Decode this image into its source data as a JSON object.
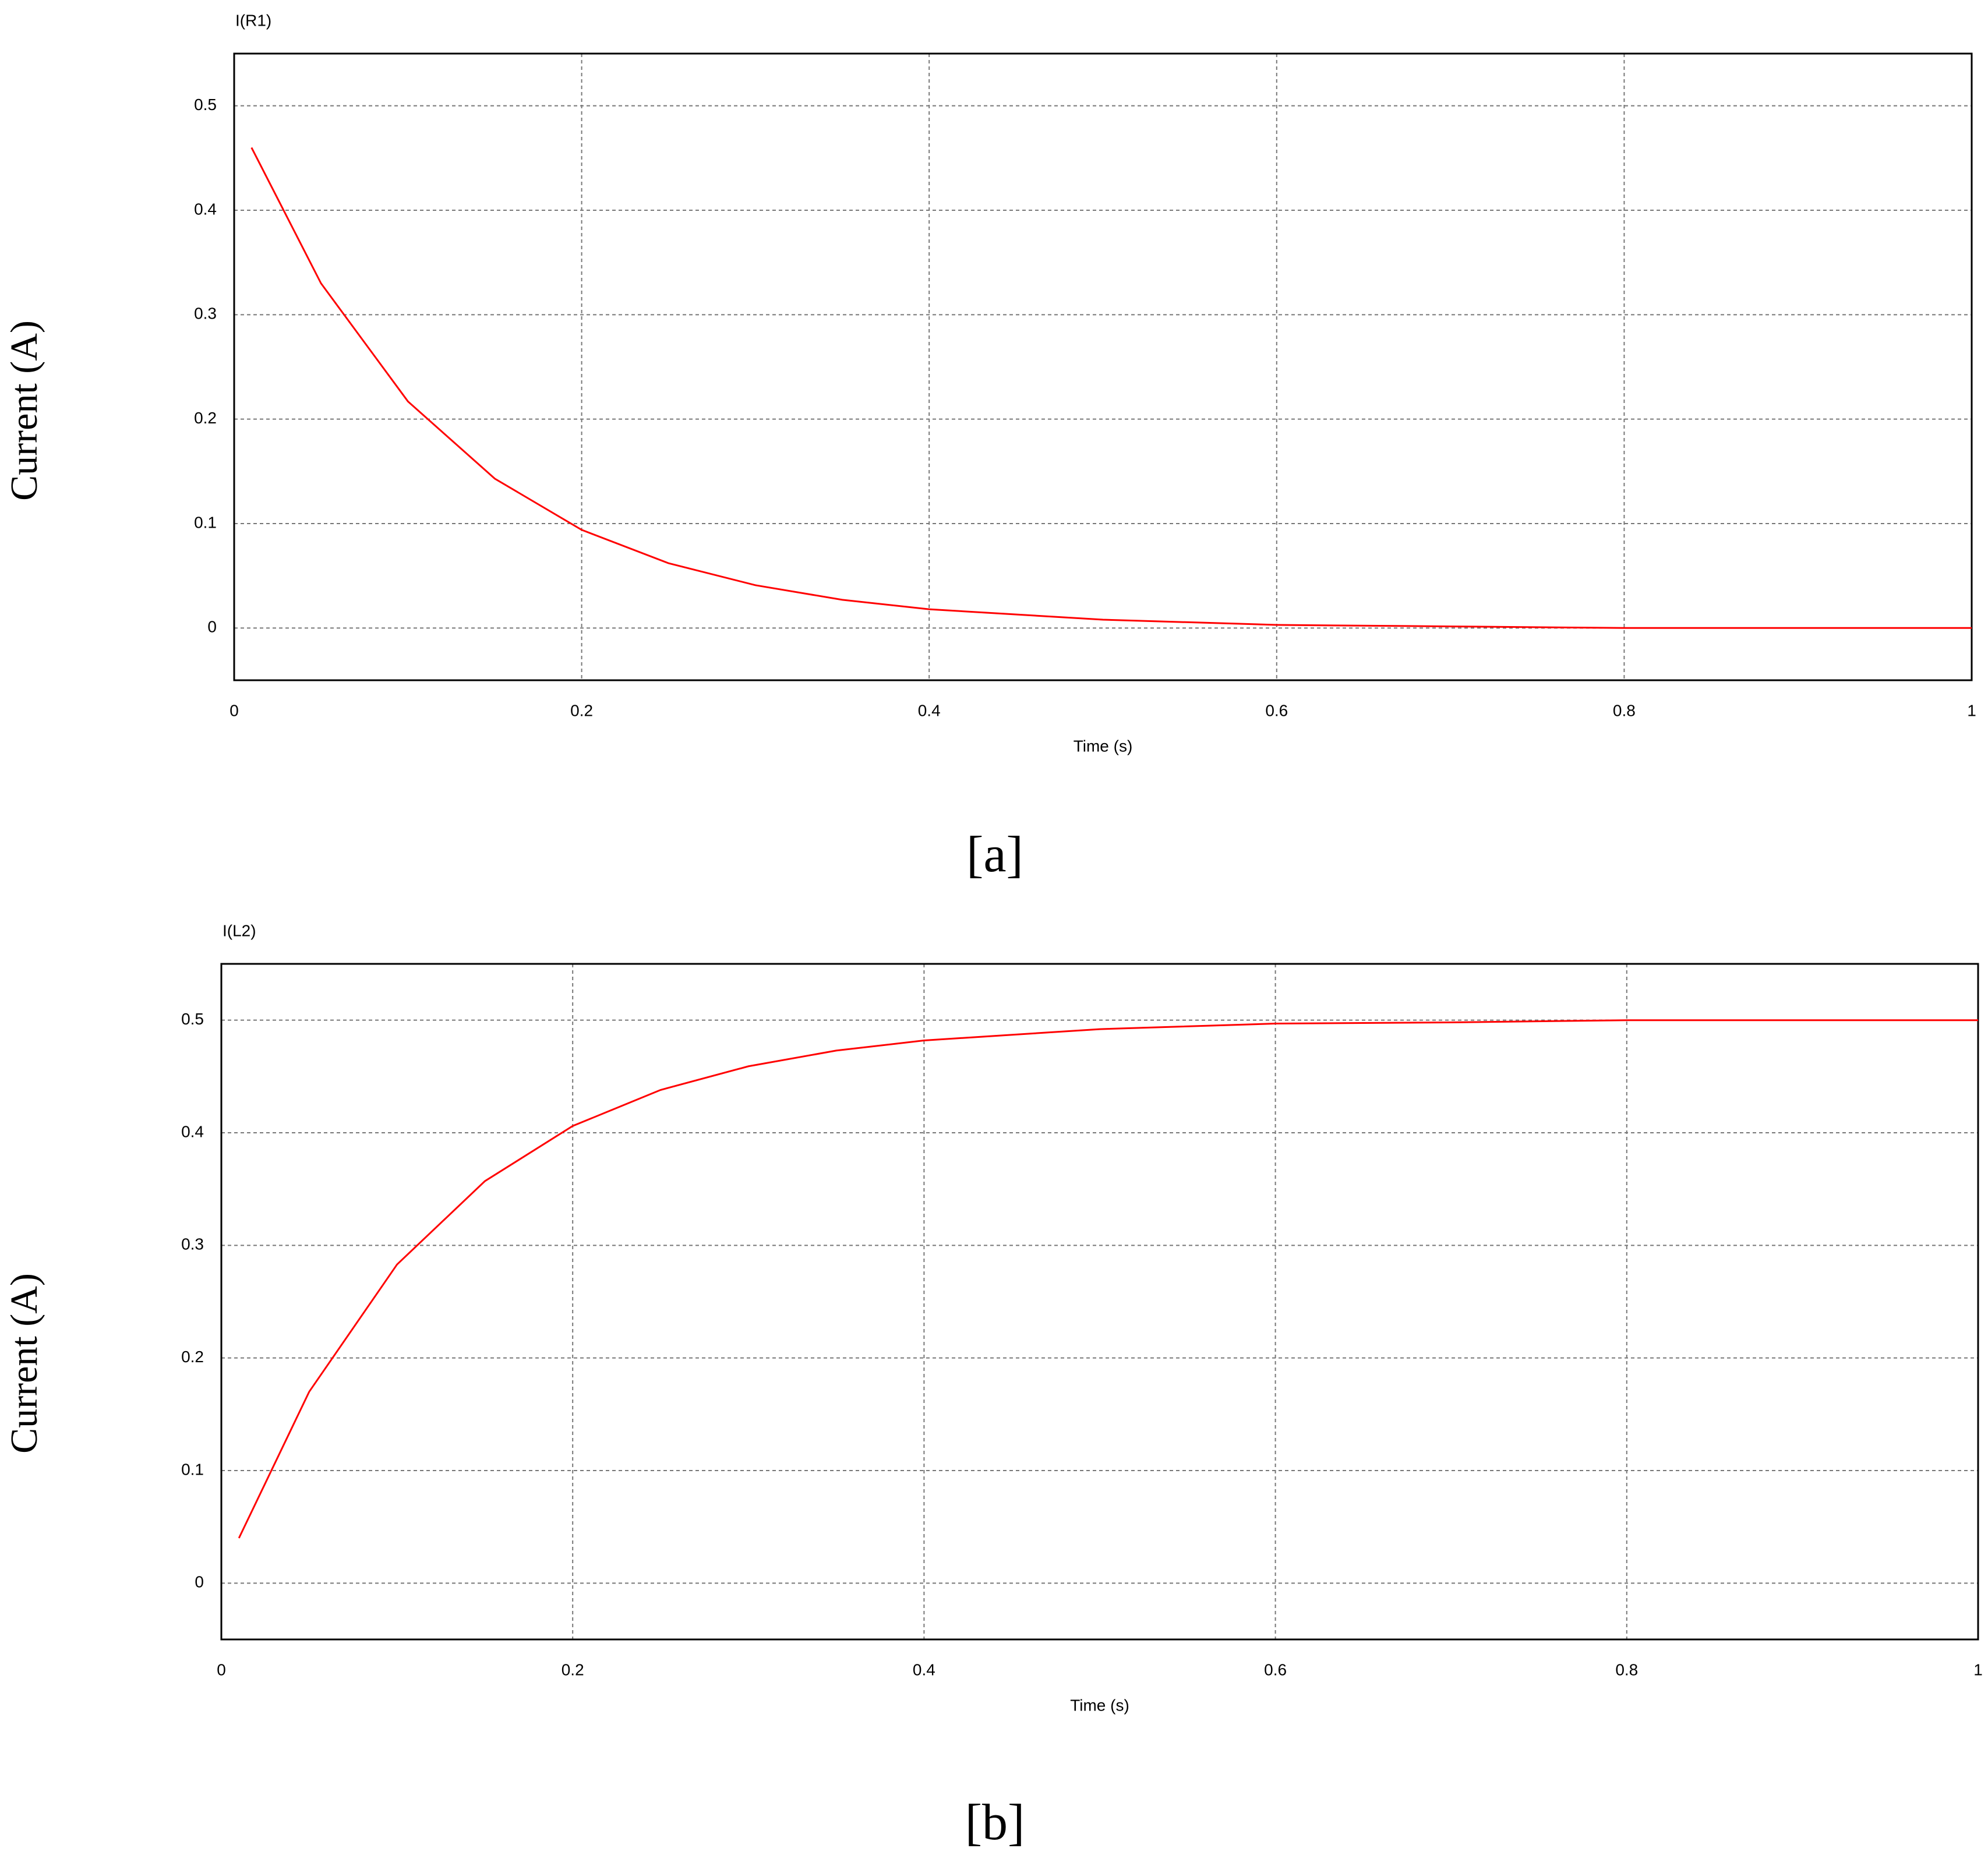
{
  "chart_data": [
    {
      "type": "line",
      "caption": "[a]",
      "x_label": "Time (s)",
      "y_label": "Current (A)",
      "x": [
        0.01,
        0.05,
        0.1,
        0.15,
        0.2,
        0.25,
        0.3,
        0.35,
        0.4,
        0.5,
        0.6,
        0.7,
        0.8,
        0.9,
        1.0
      ],
      "series": [
        {
          "name": "I(R1)",
          "color": "#ff0000",
          "values": [
            0.46,
            0.33,
            0.217,
            0.143,
            0.094,
            0.062,
            0.041,
            0.027,
            0.018,
            0.008,
            0.003,
            0.0015,
            0,
            0,
            0
          ]
        }
      ],
      "xlim": [
        0,
        1
      ],
      "ylim": [
        -0.05,
        0.55
      ],
      "xticks": [
        0,
        0.2,
        0.4,
        0.6,
        0.8,
        1
      ],
      "yticks": [
        0,
        0.1,
        0.2,
        0.3,
        0.4,
        0.5
      ],
      "grid": true
    },
    {
      "type": "line",
      "caption": "[b]",
      "x_label": "Time (s)",
      "y_label": "Current (A)",
      "x": [
        0.01,
        0.05,
        0.1,
        0.15,
        0.2,
        0.25,
        0.3,
        0.35,
        0.4,
        0.5,
        0.6,
        0.7,
        0.8,
        0.9,
        1.0
      ],
      "series": [
        {
          "name": "I(L2)",
          "color": "#ff0000",
          "values": [
            0.04,
            0.17,
            0.283,
            0.357,
            0.406,
            0.438,
            0.459,
            0.473,
            0.482,
            0.492,
            0.497,
            0.498,
            0.5,
            0.5,
            0.5
          ]
        }
      ],
      "xlim": [
        0,
        1
      ],
      "ylim": [
        -0.05,
        0.55
      ],
      "xticks": [
        0,
        0.2,
        0.4,
        0.6,
        0.8,
        1
      ],
      "yticks": [
        0,
        0.1,
        0.2,
        0.3,
        0.4,
        0.5
      ],
      "grid": true
    }
  ]
}
